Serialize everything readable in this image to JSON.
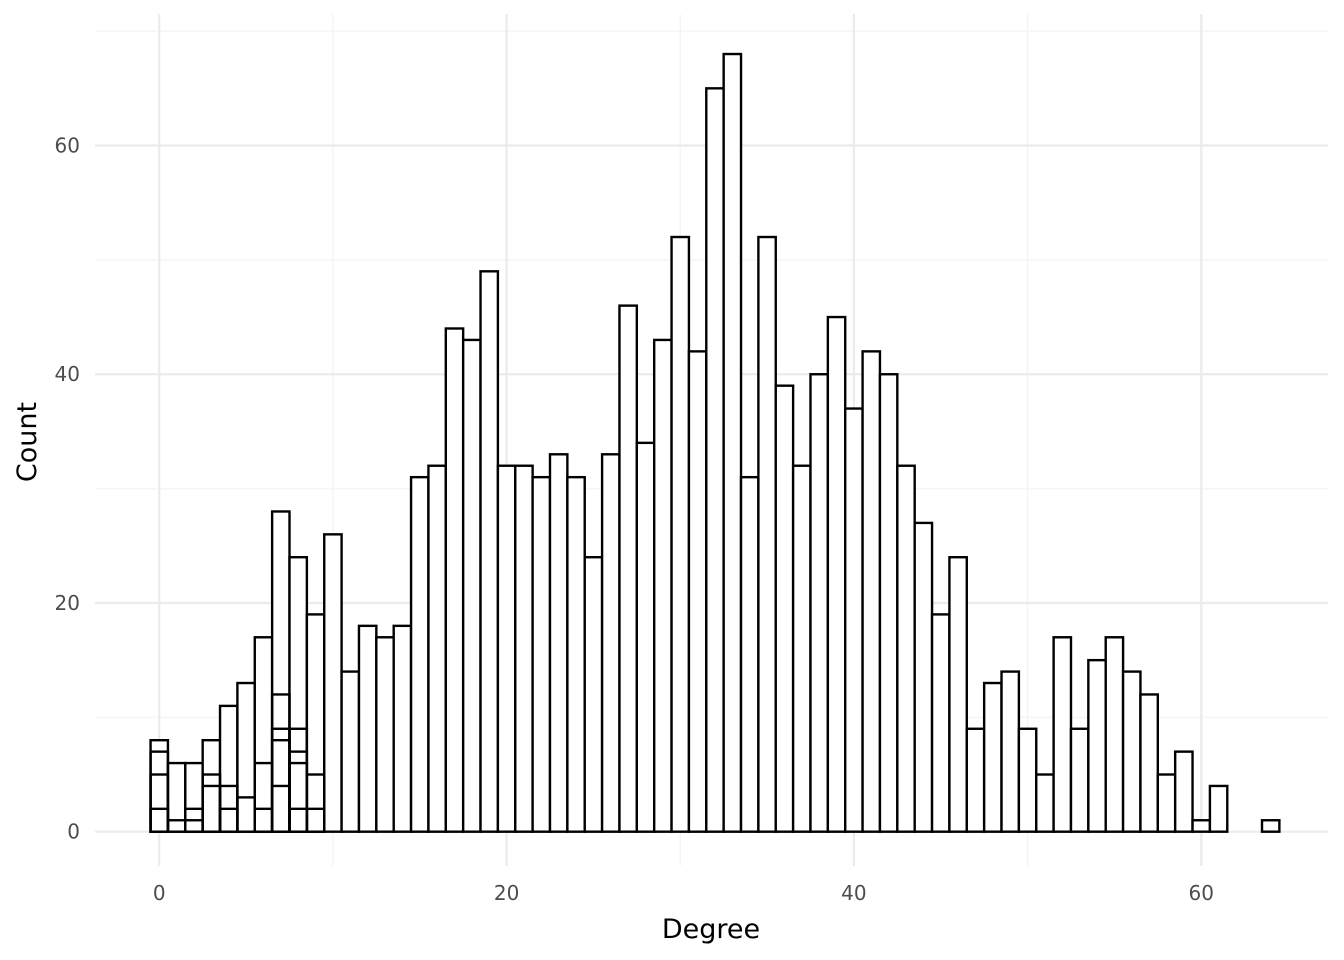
{
  "chart_data": {
    "type": "bar",
    "title": "",
    "xlabel": "Degree",
    "ylabel": "Count",
    "xlim": [
      -3.7,
      67.3
    ],
    "ylim": [
      -3.0,
      71.5
    ],
    "x_ticks": [
      0,
      20,
      40,
      60
    ],
    "y_ticks": [
      0,
      20,
      40,
      60
    ],
    "x_minor_ticks": [
      10,
      30,
      50
    ],
    "y_minor_ticks": [
      10,
      30,
      50,
      70
    ],
    "grid": true,
    "bar_width": 1,
    "x": [
      0,
      1,
      2,
      3,
      4,
      5,
      6,
      7,
      8,
      9,
      10,
      11,
      12,
      13,
      14,
      15,
      16,
      17,
      18,
      19,
      20,
      21,
      22,
      23,
      24,
      25,
      26,
      27,
      28,
      29,
      30,
      31,
      32,
      33,
      34,
      35,
      36,
      37,
      38,
      39,
      40,
      41,
      42,
      43,
      44,
      45,
      46,
      47,
      48,
      49,
      50,
      51,
      52,
      53,
      54,
      55,
      56,
      57,
      58,
      59,
      60,
      61,
      64
    ],
    "values": [
      8,
      6,
      6,
      8,
      11,
      13,
      17,
      28,
      24,
      19,
      26,
      14,
      18,
      17,
      18,
      31,
      32,
      44,
      43,
      49,
      32,
      32,
      31,
      33,
      31,
      24,
      33,
      46,
      34,
      43,
      52,
      42,
      65,
      68,
      31,
      52,
      39,
      32,
      40,
      45,
      37,
      42,
      40,
      32,
      27,
      19,
      24,
      9,
      13,
      14,
      9,
      5,
      17,
      9,
      15,
      17,
      14,
      12,
      5,
      7,
      1,
      4,
      1
    ],
    "overlay_x": [
      0,
      0,
      0,
      1,
      2,
      2,
      3,
      3,
      4,
      4,
      5,
      6,
      6,
      7,
      7,
      7,
      7,
      8,
      8,
      8,
      8,
      9,
      9
    ],
    "overlay_values": [
      7,
      5,
      2,
      1,
      2,
      1,
      5,
      4,
      4,
      2,
      3,
      6,
      2,
      12,
      9,
      8,
      4,
      9,
      7,
      6,
      2,
      5,
      2
    ],
    "colors": {
      "bar_fill": "#ffffff",
      "bar_stroke": "#000000",
      "grid_major": "#ebebeb",
      "grid_minor": "#f5f5f5"
    }
  }
}
